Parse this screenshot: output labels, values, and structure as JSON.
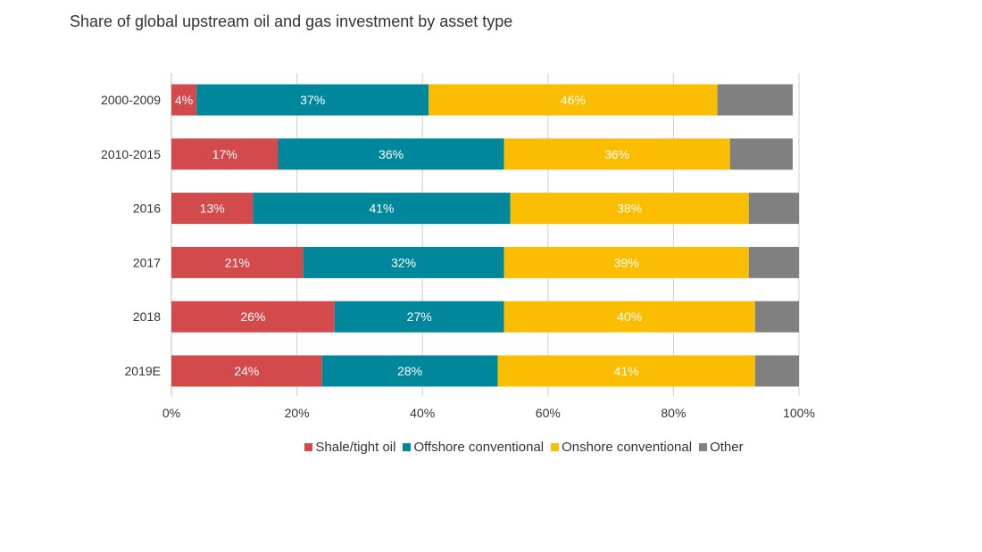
{
  "chart_data": {
    "type": "bar",
    "orientation": "horizontal",
    "stacked": true,
    "title": "Share of global upstream oil and gas investment by asset type",
    "categories": [
      "2000-2009",
      "2010-2015",
      "2016",
      "2017",
      "2018",
      "2019E"
    ],
    "series": [
      {
        "name": "Shale/tight oil",
        "color": "#d24a4b",
        "values": [
          4,
          17,
          13,
          21,
          26,
          24
        ],
        "labels": [
          "4%",
          "17%",
          "13%",
          "21%",
          "26%",
          "24%"
        ]
      },
      {
        "name": "Offshore conventional",
        "color": "#00879b",
        "values": [
          37,
          36,
          41,
          32,
          27,
          28
        ],
        "labels": [
          "37%",
          "36%",
          "41%",
          "32%",
          "27%",
          "28%"
        ]
      },
      {
        "name": "Onshore conventional",
        "color": "#fbbd01",
        "values": [
          46,
          36,
          38,
          39,
          40,
          41
        ],
        "labels": [
          "46%",
          "36%",
          "38%",
          "39%",
          "40%",
          "41%"
        ]
      },
      {
        "name": "Other",
        "color": "#808080",
        "values": [
          12,
          10,
          8,
          8,
          7,
          7
        ],
        "labels": [
          "",
          "",
          "",
          "",
          "",
          ""
        ]
      }
    ],
    "xlim": [
      0,
      100
    ],
    "xticks": [
      0,
      20,
      40,
      60,
      80,
      100
    ],
    "xtick_labels": [
      "0%",
      "20%",
      "40%",
      "60%",
      "80%",
      "100%"
    ],
    "xlabel": "",
    "ylabel": "",
    "grid": "vertical",
    "legend_position": "bottom"
  }
}
